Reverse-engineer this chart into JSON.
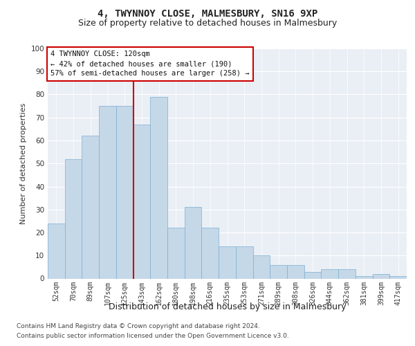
{
  "title1": "4, TWYNNOY CLOSE, MALMESBURY, SN16 9XP",
  "title2": "Size of property relative to detached houses in Malmesbury",
  "xlabel": "Distribution of detached houses by size in Malmesbury",
  "ylabel": "Number of detached properties",
  "categories": [
    "52sqm",
    "70sqm",
    "89sqm",
    "107sqm",
    "125sqm",
    "143sqm",
    "162sqm",
    "180sqm",
    "198sqm",
    "216sqm",
    "235sqm",
    "253sqm",
    "271sqm",
    "289sqm",
    "308sqm",
    "326sqm",
    "344sqm",
    "362sqm",
    "381sqm",
    "399sqm",
    "417sqm"
  ],
  "bar_values": [
    24,
    52,
    62,
    75,
    75,
    67,
    79,
    22,
    31,
    22,
    14,
    14,
    10,
    6,
    6,
    3,
    4,
    4,
    1,
    2,
    1
  ],
  "bar_color": "#c5d8e8",
  "bar_edge_color": "#7bafd4",
  "vline_color": "#cc0000",
  "vline_x": 4.5,
  "annotation_text": "4 TWYNNOY CLOSE: 120sqm\n← 42% of detached houses are smaller (190)\n57% of semi-detached houses are larger (258) →",
  "annotation_box_edge_color": "#cc0000",
  "footnote1": "Contains HM Land Registry data © Crown copyright and database right 2024.",
  "footnote2": "Contains public sector information licensed under the Open Government Licence v3.0.",
  "bg_color": "#eaeff5",
  "fig_bg_color": "#ffffff",
  "grid_color": "#ffffff"
}
